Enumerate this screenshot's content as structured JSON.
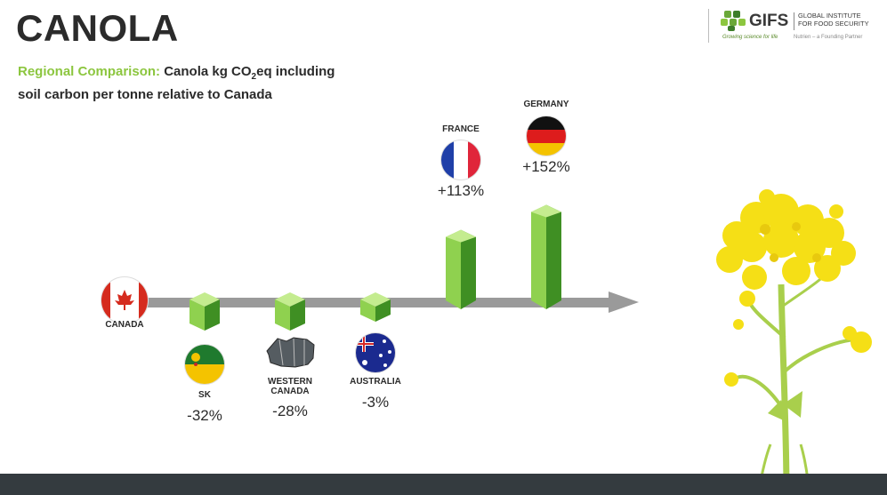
{
  "title": "CANOLA",
  "subtitle": {
    "accent": "Regional Comparison:",
    "line1": "Canola kg CO",
    "sub": "2",
    "line1_end": "eq including",
    "line2": "soil carbon per tonne relative to Canada"
  },
  "logo": {
    "name": "GIFS",
    "full_line1": "GLOBAL INSTITUTE",
    "full_line2": "FOR FOOD SECURITY",
    "tagline": "Growing science for life",
    "partner": "Nutrien – a Founding Partner"
  },
  "baseline_label": "CANADA",
  "colors": {
    "bar_dark": "#3f8f23",
    "bar_light": "#8fd14f",
    "accent_green": "#8cc63f",
    "arrow": "#9a9a9a",
    "footer": "#343b3f",
    "flower": "#f5df16",
    "stem": "#a9cf4c"
  },
  "chart_data": {
    "type": "bar",
    "baseline": "CANADA",
    "categories": [
      "SK",
      "WESTERN CANADA",
      "AUSTRALIA",
      "FRANCE",
      "GERMANY"
    ],
    "values": [
      -32,
      -28,
      -3,
      113,
      152
    ],
    "value_labels": [
      "-32%",
      "-28%",
      "-3%",
      "+113%",
      "+152%"
    ],
    "unit": "%",
    "icons": [
      "saskatchewan-flag-icon",
      "western-canada-map-icon",
      "australia-flag-icon",
      "france-flag-icon",
      "germany-flag-icon"
    ]
  }
}
